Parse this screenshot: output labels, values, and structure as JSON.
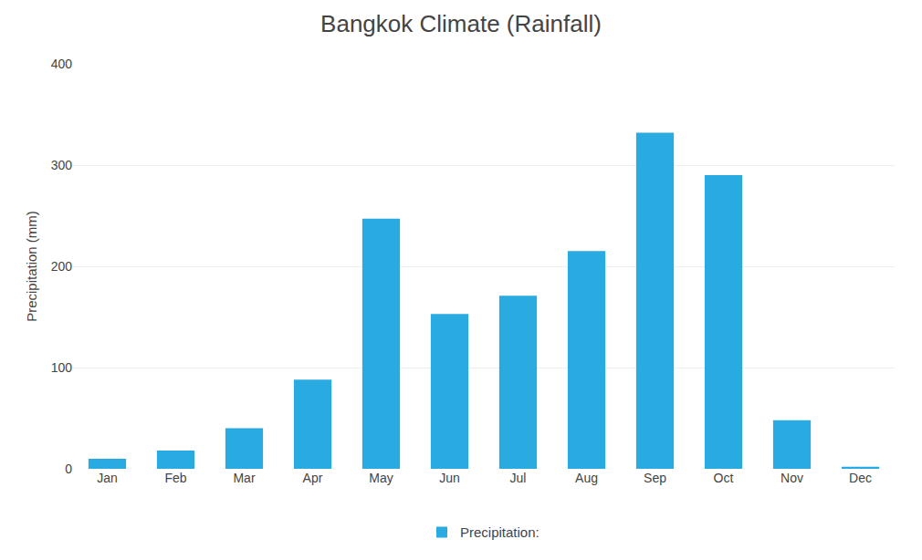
{
  "chart_data": {
    "type": "bar",
    "title": "Bangkok Climate (Rainfall)",
    "categories": [
      "Jan",
      "Feb",
      "Mar",
      "Apr",
      "May",
      "Jun",
      "Jul",
      "Aug",
      "Sep",
      "Oct",
      "Nov",
      "Dec"
    ],
    "series": [
      {
        "name": "Precipitation:",
        "color": "#29ABE2",
        "values": [
          10,
          18,
          40,
          88,
          247,
          153,
          171,
          215,
          332,
          290,
          48,
          2
        ]
      }
    ],
    "ylabel": "Precipitation (mm)",
    "ylim": [
      0,
      400
    ],
    "yticks": [
      0,
      100,
      200,
      300,
      400
    ],
    "grid": true,
    "legend": "bottom"
  }
}
